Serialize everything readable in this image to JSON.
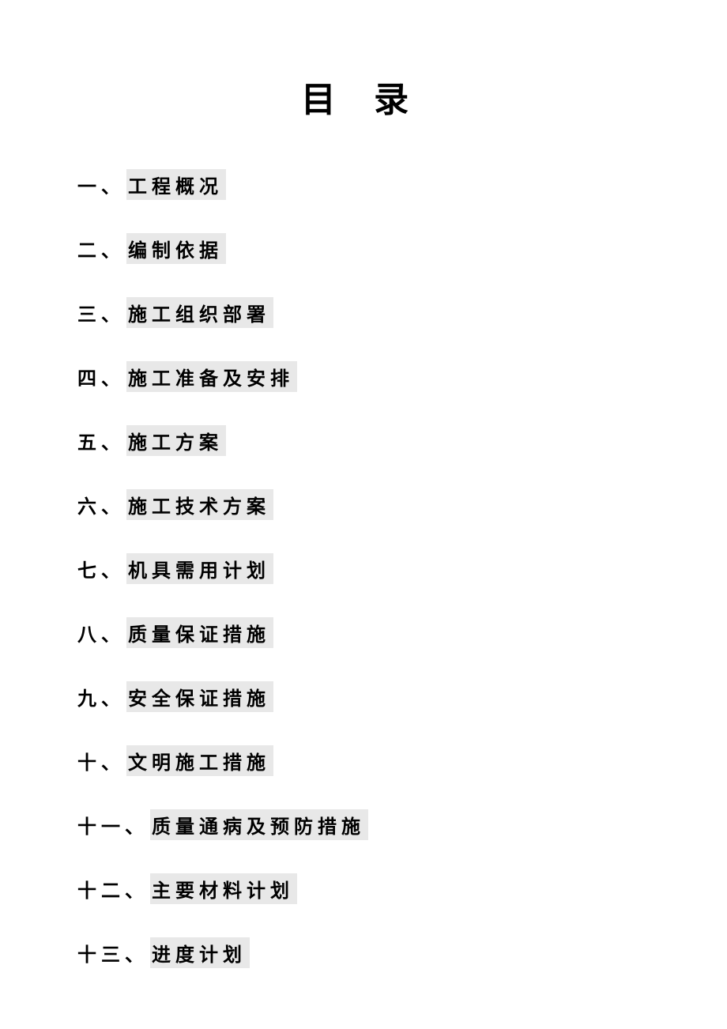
{
  "document": {
    "title": "目 录",
    "title_fontsize": 44,
    "item_fontsize": 24,
    "background_color": "#ffffff",
    "text_color": "#000000",
    "highlight_color": "#e8e8e8",
    "letter_spacing": 6,
    "line_spacing": 42
  },
  "toc": {
    "items": [
      {
        "number": "一、",
        "label": "工程概况"
      },
      {
        "number": "二、",
        "label": "编制依据"
      },
      {
        "number": "三、",
        "label": "施工组织部署"
      },
      {
        "number": "四、",
        "label": "施工准备及安排"
      },
      {
        "number": "五、",
        "label": "施工方案"
      },
      {
        "number": "六、",
        "label": "施工技术方案"
      },
      {
        "number": "七、",
        "label": "机具需用计划"
      },
      {
        "number": "八、",
        "label": "质量保证措施"
      },
      {
        "number": "九、",
        "label": "安全保证措施"
      },
      {
        "number": "十、",
        "label": "文明施工措施"
      },
      {
        "number": "十一、",
        "label": "质量通病及预防措施"
      },
      {
        "number": "十二、",
        "label": "主要材料计划"
      },
      {
        "number": "十三、",
        "label": "进度计划"
      }
    ]
  }
}
